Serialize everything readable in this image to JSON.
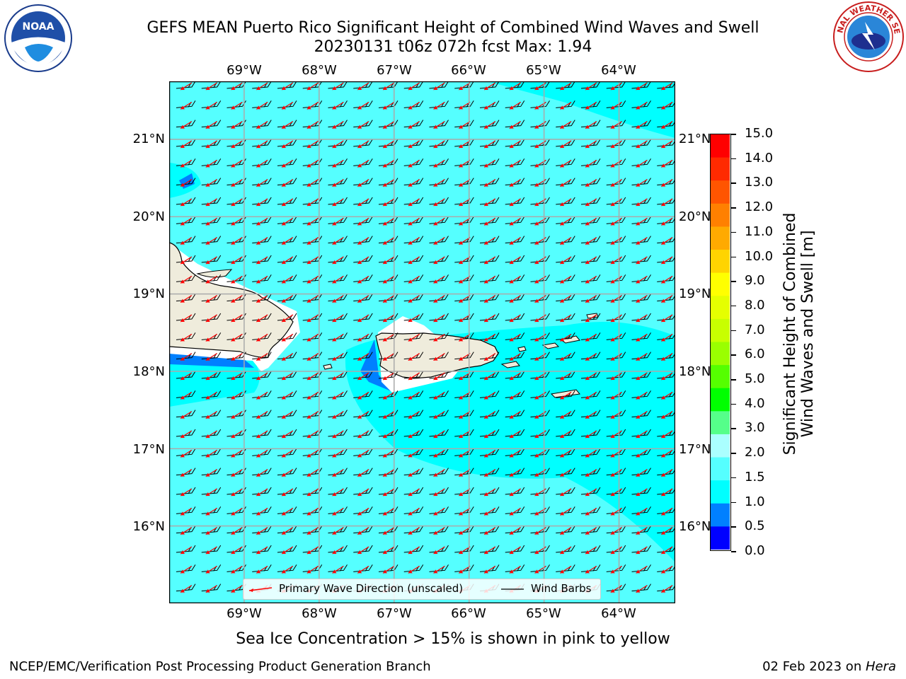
{
  "title": {
    "line1": "GEFS MEAN Puerto Rico Significant Height of Combined Wind Waves and Swell",
    "line2": "20230131 t06z 072h fcst   Max: 1.94"
  },
  "logos": {
    "left": {
      "name": "noaa-logo-icon",
      "text": "NOAA"
    },
    "right": {
      "name": "national-weather-service-logo-icon",
      "text": "NATIONAL WEATHER SERVICE"
    }
  },
  "map": {
    "lon_labels": [
      "69°W",
      "68°W",
      "67°W",
      "66°W",
      "65°W",
      "64°W"
    ],
    "lat_labels": [
      "21°N",
      "20°N",
      "19°N",
      "18°N",
      "17°N",
      "16°N"
    ],
    "lon_range": [
      -70.0,
      -63.25
    ],
    "lat_range": [
      15.0,
      21.75
    ],
    "background_color": "#55ffff",
    "land_color": "#efecdc",
    "max_value": 1.94
  },
  "legend": {
    "wave_label": "Primary Wave Direction (unscaled)",
    "barb_label": "Wind Barbs"
  },
  "colorbar": {
    "label_line1": "Significant Height of Combined",
    "label_line2": "Wind Waves and Swell [m]",
    "ticks": [
      "15.0",
      "14.0",
      "13.0",
      "12.0",
      "11.0",
      "10.0",
      "9.0",
      "8.0",
      "7.0",
      "6.0",
      "5.0",
      "4.0",
      "3.0",
      "2.0",
      "1.5",
      "1.0",
      "0.5",
      "0.0"
    ],
    "colors": [
      "#ff0000",
      "#ff2a00",
      "#ff5500",
      "#ff8000",
      "#ffaa00",
      "#ffd400",
      "#ffff00",
      "#e5ff00",
      "#c8ff00",
      "#9aff00",
      "#55ff00",
      "#00ff00",
      "#55ff8a",
      "#aaffff",
      "#55ffff",
      "#00ffff",
      "#0080ff",
      "#0000ff"
    ]
  },
  "caption": "Sea Ice Concentration > 15% is shown in pink to yellow",
  "footer": {
    "left": "NCEP/EMC/Verification Post Processing Product Generation Branch",
    "right_date": "02 Feb 2023 on ",
    "right_host": "Hera"
  }
}
